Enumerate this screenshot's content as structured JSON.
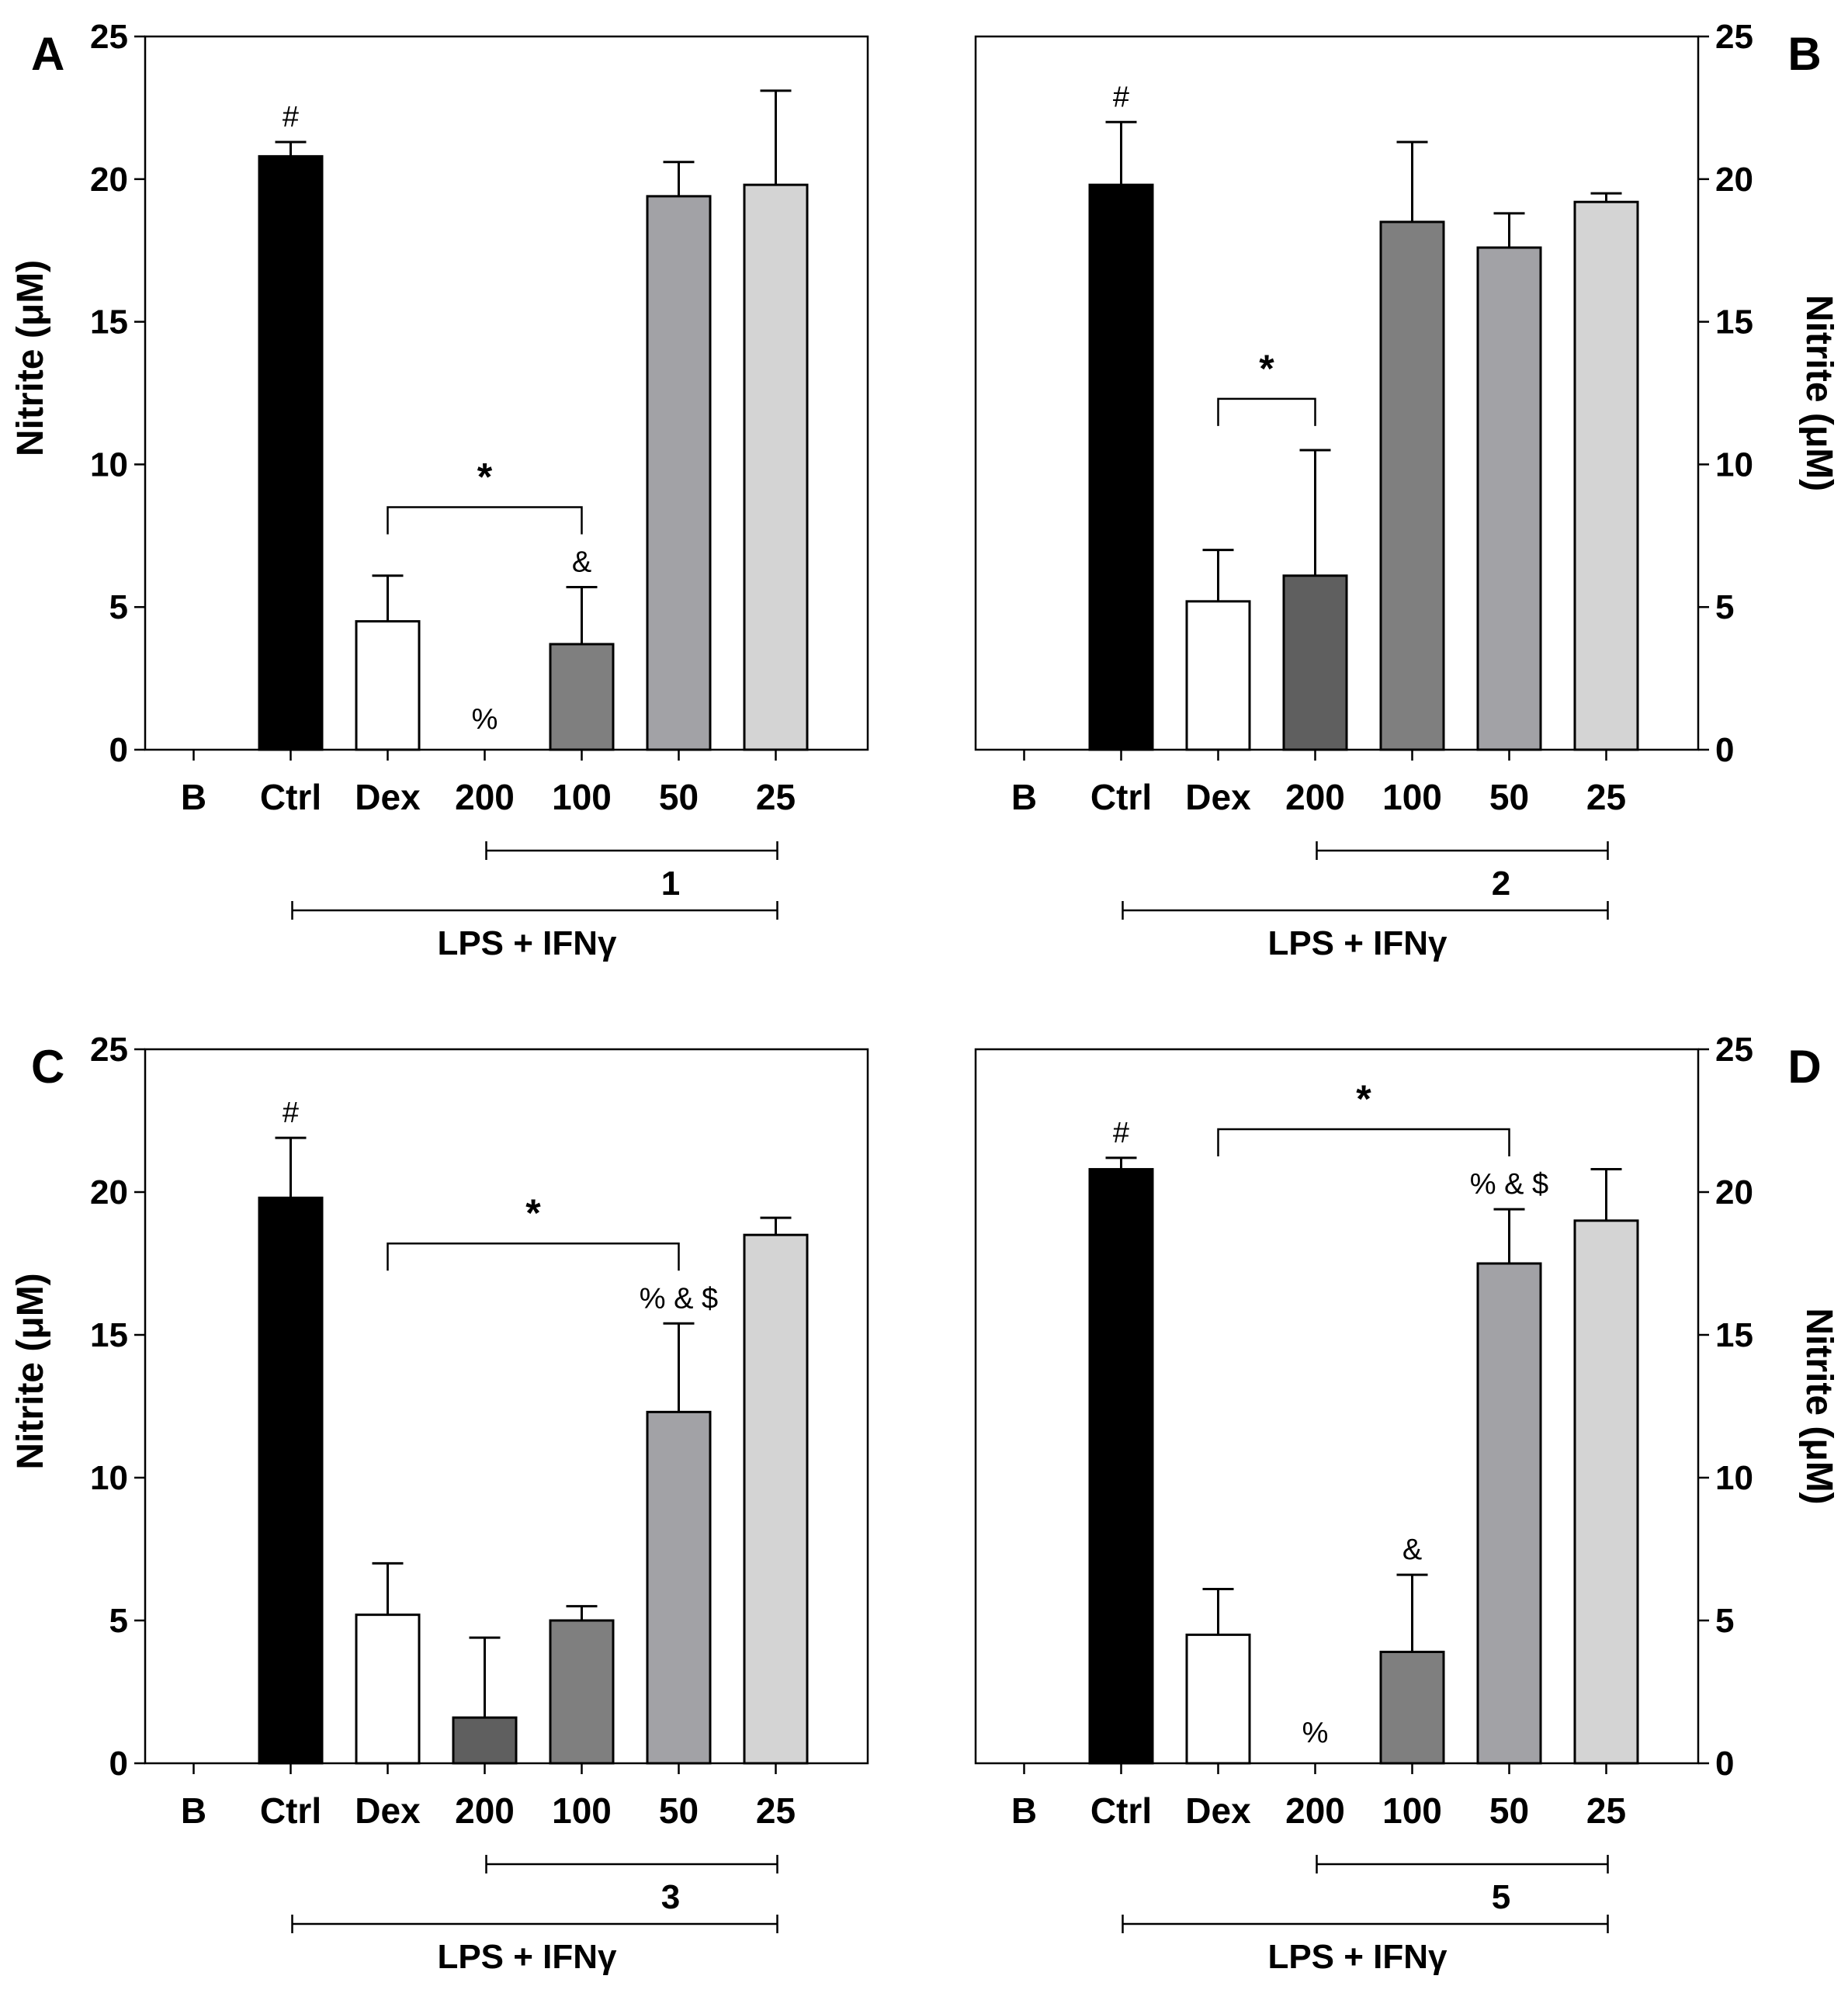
{
  "chart_data": [
    {
      "panel": "A",
      "type": "bar",
      "ylabel": "Nitrite (μM)",
      "ylim": [
        0,
        25
      ],
      "yticks": [
        "0",
        "5",
        "10",
        "15",
        "20",
        "25"
      ],
      "axis_side": "left",
      "categories": [
        "B",
        "Ctrl",
        "Dex",
        "200",
        "100",
        "50",
        "25"
      ],
      "values": [
        0,
        20.8,
        4.5,
        0,
        3.7,
        19.4,
        19.8
      ],
      "errors": [
        0,
        0.5,
        1.6,
        0,
        2.0,
        1.2,
        3.3
      ],
      "colors": [
        "#ffffff",
        "#000000",
        "#ffffff",
        "#5f5f5f",
        "#7f7f7f",
        "#a2a2a6",
        "#d4d4d4"
      ],
      "annotations": [
        {
          "category": "Ctrl",
          "text": "#"
        },
        {
          "category": "200",
          "text": "%",
          "placement": "inside"
        },
        {
          "category": "100",
          "text": "&"
        }
      ],
      "significance": {
        "from": "Dex",
        "to": "100",
        "y": 8.5,
        "text": "*"
      },
      "compound": {
        "label": "1",
        "from": "200",
        "to": "25"
      },
      "treatment": {
        "label": "LPS + IFNγ",
        "from": "Ctrl",
        "to": "25"
      }
    },
    {
      "panel": "B",
      "type": "bar",
      "ylabel": "Nitrite (μM)",
      "ylim": [
        0,
        25
      ],
      "yticks": [
        "0",
        "5",
        "10",
        "15",
        "20",
        "25"
      ],
      "axis_side": "right",
      "categories": [
        "B",
        "Ctrl",
        "Dex",
        "200",
        "100",
        "50",
        "25"
      ],
      "values": [
        0,
        19.8,
        5.2,
        6.1,
        18.5,
        17.6,
        19.2
      ],
      "errors": [
        0,
        2.2,
        1.8,
        4.4,
        2.8,
        1.2,
        0.3
      ],
      "colors": [
        "#ffffff",
        "#000000",
        "#ffffff",
        "#5f5f5f",
        "#7f7f7f",
        "#a2a2a6",
        "#d4d4d4"
      ],
      "annotations": [
        {
          "category": "Ctrl",
          "text": "#"
        }
      ],
      "significance": {
        "from": "Dex",
        "to": "200",
        "y": 12.3,
        "text": "*"
      },
      "compound": {
        "label": "2",
        "from": "200",
        "to": "25"
      },
      "treatment": {
        "label": "LPS + IFNγ",
        "from": "Ctrl",
        "to": "25"
      }
    },
    {
      "panel": "C",
      "type": "bar",
      "ylabel": "Nitrite (μM)",
      "ylim": [
        0,
        25
      ],
      "yticks": [
        "0",
        "5",
        "10",
        "15",
        "20",
        "25"
      ],
      "axis_side": "left",
      "categories": [
        "B",
        "Ctrl",
        "Dex",
        "200",
        "100",
        "50",
        "25"
      ],
      "values": [
        0,
        19.8,
        5.2,
        1.6,
        5.0,
        12.3,
        18.5
      ],
      "errors": [
        0,
        2.1,
        1.8,
        2.8,
        0.5,
        3.1,
        0.6
      ],
      "colors": [
        "#ffffff",
        "#000000",
        "#ffffff",
        "#5f5f5f",
        "#7f7f7f",
        "#a2a2a6",
        "#d4d4d4"
      ],
      "annotations": [
        {
          "category": "Ctrl",
          "text": "#"
        },
        {
          "category": "50",
          "text": "% & $"
        }
      ],
      "significance": {
        "from": "Dex",
        "to": "50",
        "y": 18.2,
        "text": "*"
      },
      "compound": {
        "label": "3",
        "from": "200",
        "to": "25"
      },
      "treatment": {
        "label": "LPS + IFNγ",
        "from": "Ctrl",
        "to": "25"
      }
    },
    {
      "panel": "D",
      "type": "bar",
      "ylabel": "Nitrite (μM)",
      "ylim": [
        0,
        25
      ],
      "yticks": [
        "0",
        "5",
        "10",
        "15",
        "20",
        "25"
      ],
      "axis_side": "right",
      "categories": [
        "B",
        "Ctrl",
        "Dex",
        "200",
        "100",
        "50",
        "25"
      ],
      "values": [
        0,
        20.8,
        4.5,
        0,
        3.9,
        17.5,
        19.0
      ],
      "errors": [
        0,
        0.4,
        1.6,
        0,
        2.7,
        1.9,
        1.8
      ],
      "colors": [
        "#ffffff",
        "#000000",
        "#ffffff",
        "#5f5f5f",
        "#7f7f7f",
        "#a2a2a6",
        "#d4d4d4"
      ],
      "annotations": [
        {
          "category": "Ctrl",
          "text": "#"
        },
        {
          "category": "200",
          "text": "%",
          "placement": "inside"
        },
        {
          "category": "100",
          "text": "&"
        },
        {
          "category": "50",
          "text": "% & $"
        }
      ],
      "significance": {
        "from": "Dex",
        "to": "50",
        "y": 22.2,
        "text": "*"
      },
      "compound": {
        "label": "5",
        "from": "200",
        "to": "25"
      },
      "treatment": {
        "label": "LPS + IFNγ",
        "from": "Ctrl",
        "to": "25"
      }
    }
  ]
}
